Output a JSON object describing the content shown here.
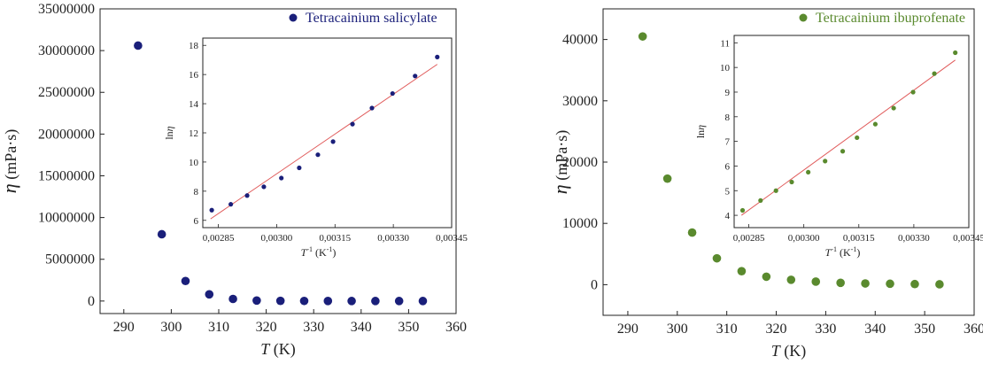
{
  "chart_data": [
    {
      "type": "scatter",
      "title": "",
      "xlabel_symbol": "T",
      "xlabel_unit": "(K)",
      "ylabel_symbol": "η",
      "ylabel_unit": "(mPa·s)",
      "xlim": [
        285,
        360
      ],
      "ylim": [
        -1500000,
        35000000
      ],
      "xticks": [
        290,
        300,
        310,
        320,
        330,
        340,
        350,
        360
      ],
      "yticks": [
        0,
        5000000,
        10000000,
        15000000,
        20000000,
        25000000,
        30000000,
        35000000
      ],
      "ytick_labels": [
        "0",
        "5000000",
        "10000000",
        "15000000",
        "20000000",
        "25000000",
        "30000000",
        "35000000"
      ],
      "legend": {
        "label": "Tetracainium salicylate",
        "position": "top-right"
      },
      "color": "#1a1f7a",
      "series": [
        {
          "name": "Tetracainium salicylate",
          "x": [
            293,
            298,
            303,
            308,
            313,
            318,
            323,
            328,
            333,
            338,
            343,
            348,
            353
          ],
          "y": [
            30600000,
            8000000,
            2400000,
            800000,
            250000,
            60000,
            20000,
            10000,
            5000,
            3000,
            2000,
            1500,
            1000
          ]
        }
      ],
      "inset": {
        "type": "scatter",
        "xlabel": "T",
        "xlabel_sup": "-1",
        "xlabel_unit": "(K",
        "xlabel_unit_sup": "-1",
        "xlabel_unit_close": ")",
        "ylabel": "ln",
        "ylabel_symbol": "η",
        "xlim": [
          0.00281,
          0.00345
        ],
        "ylim": [
          5.5,
          18.5
        ],
        "xticks": [
          0.00285,
          0.003,
          0.00315,
          0.0033,
          0.00345
        ],
        "xtick_labels": [
          "0,00285",
          "0,00300",
          "0,00315",
          "0,00330",
          "0,00345"
        ],
        "yticks": [
          6,
          8,
          10,
          12,
          14,
          16,
          18
        ],
        "ytick_labels": [
          "6",
          "8",
          "10",
          "12",
          "14",
          "16",
          "18"
        ],
        "fit_color": "#e05a5a",
        "fit_line": {
          "x": [
            0.00283,
            0.003413
          ],
          "y": [
            6.1,
            16.7
          ]
        },
        "series": [
          {
            "x": [
              0.002833,
              0.002882,
              0.002924,
              0.002967,
              0.003012,
              0.003058,
              0.003106,
              0.003145,
              0.003195,
              0.003245,
              0.003298,
              0.003356,
              0.003413
            ],
            "y": [
              6.7,
              7.1,
              7.7,
              8.3,
              8.9,
              9.6,
              10.5,
              11.4,
              12.6,
              13.7,
              14.7,
              15.9,
              17.2
            ]
          }
        ]
      }
    },
    {
      "type": "scatter",
      "title": "",
      "xlabel_symbol": "T",
      "xlabel_unit": "(K)",
      "ylabel_symbol": "η",
      "ylabel_unit": "(mPa·s)",
      "xlim": [
        285,
        360
      ],
      "ylim": [
        -5000,
        45000
      ],
      "xticks": [
        290,
        300,
        310,
        320,
        330,
        340,
        350,
        360
      ],
      "yticks": [
        0,
        10000,
        20000,
        30000,
        40000
      ],
      "ytick_labels": [
        "0",
        "10000",
        "20000",
        "30000",
        "40000"
      ],
      "legend": {
        "label": "Tetracainium ibuprofenate",
        "position": "top-right"
      },
      "color": "#5a8a2e",
      "series": [
        {
          "name": "Tetracainium ibuprofenate",
          "x": [
            293,
            298,
            303,
            308,
            313,
            318,
            323,
            328,
            333,
            338,
            343,
            348,
            353
          ],
          "y": [
            40500,
            17300,
            8500,
            4300,
            2200,
            1300,
            800,
            500,
            300,
            200,
            150,
            100,
            60
          ]
        }
      ],
      "inset": {
        "type": "scatter",
        "xlabel": "T",
        "xlabel_sup": "-1",
        "xlabel_unit": "(K",
        "xlabel_unit_sup": "-1",
        "xlabel_unit_close": ")",
        "ylabel": "ln",
        "ylabel_symbol": "η",
        "xlim": [
          0.00281,
          0.00345
        ],
        "ylim": [
          3.5,
          11.3
        ],
        "xticks": [
          0.00285,
          0.003,
          0.00315,
          0.0033,
          0.00345
        ],
        "xtick_labels": [
          "0,00285",
          "0,00300",
          "0,00315",
          "0,00330",
          "0,00345"
        ],
        "yticks": [
          4,
          5,
          6,
          7,
          8,
          9,
          10,
          11
        ],
        "ytick_labels": [
          "4",
          "5",
          "6",
          "7",
          "8",
          "9",
          "10",
          "11"
        ],
        "fit_color": "#e05a5a",
        "fit_line": {
          "x": [
            0.00283,
            0.003413
          ],
          "y": [
            4.0,
            10.3
          ]
        },
        "series": [
          {
            "x": [
              0.002833,
              0.002882,
              0.002924,
              0.002967,
              0.003012,
              0.003058,
              0.003106,
              0.003145,
              0.003195,
              0.003245,
              0.003298,
              0.003356,
              0.003413
            ],
            "y": [
              4.2,
              4.6,
              5.0,
              5.35,
              5.75,
              6.2,
              6.6,
              7.15,
              7.7,
              8.35,
              9.0,
              9.75,
              10.6
            ]
          }
        ]
      }
    }
  ]
}
